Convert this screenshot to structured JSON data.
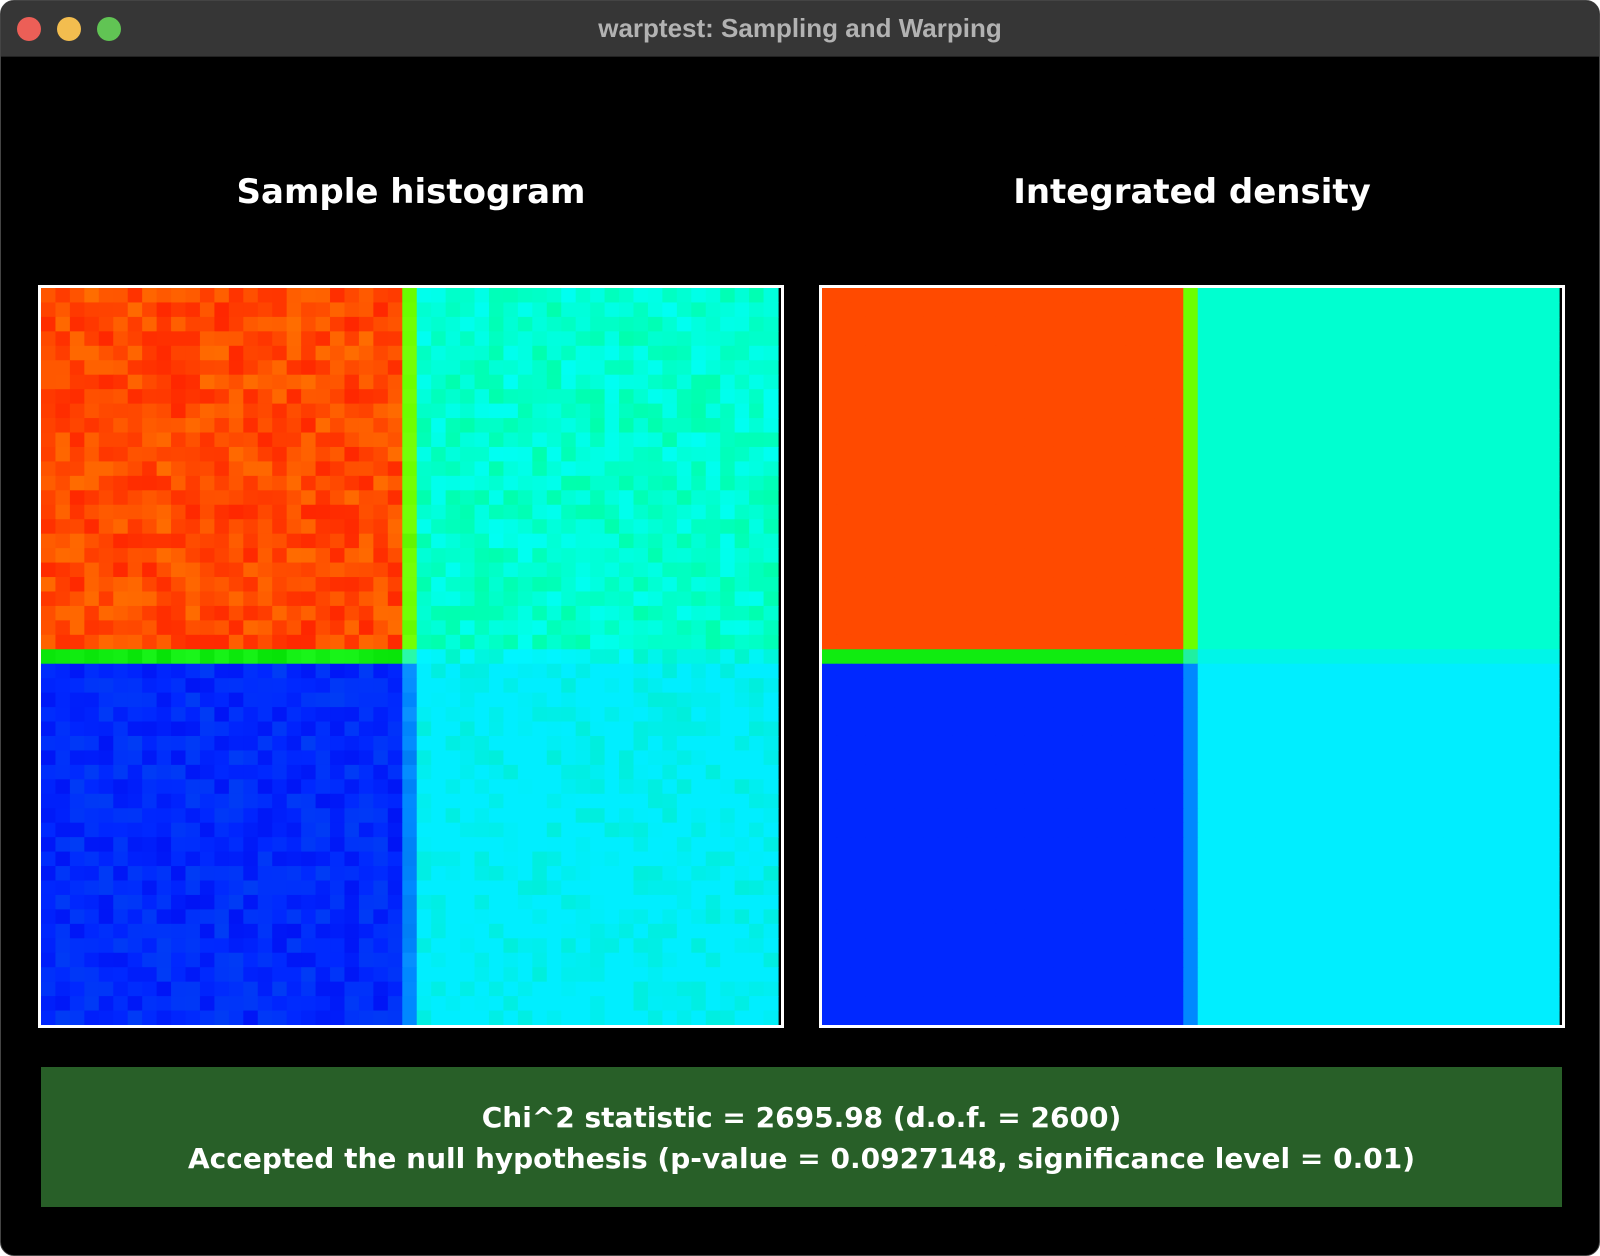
{
  "window": {
    "title": "warptest: Sampling and Warping"
  },
  "panels": {
    "left_title": "Sample histogram",
    "right_title": "Integrated density"
  },
  "heatmaps": {
    "quadrant_colors": {
      "top_left": "#ff4a00",
      "top_right": "#00ffd0",
      "bottom_left": "#0028ff",
      "bottom_right": "#00eeff",
      "vertical_divider_top": "#6cff00",
      "vertical_divider_bottom": "#0088ff",
      "horizontal_divider_left": "#10ec10",
      "horizontal_divider_right": "#00f5e8",
      "center": "#20f0a0"
    },
    "colormap": "jet"
  },
  "status": {
    "line1": "Chi^2 statistic = 2695.98 (d.o.f. = 2600)",
    "line2": "Accepted the null hypothesis (p-value = 0.0927148, significance level = 0.01)",
    "background_color": "#285f28"
  }
}
